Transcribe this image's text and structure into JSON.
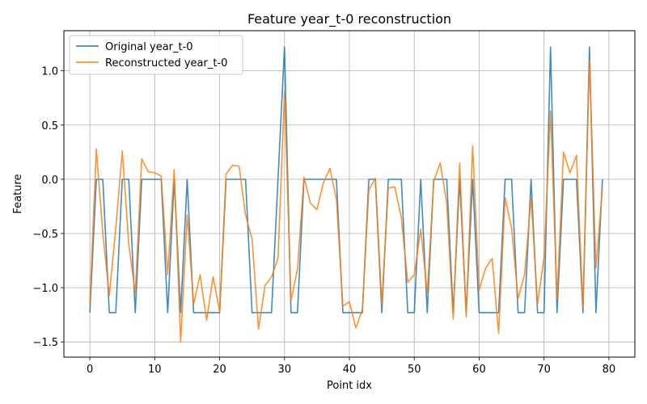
{
  "chart_data": {
    "type": "line",
    "title": "Feature year_t-0 reconstruction",
    "xlabel": "Point idx",
    "ylabel": "Feature",
    "xlim": [
      -4,
      84
    ],
    "ylim": [
      -1.64,
      1.37
    ],
    "xticks": [
      0,
      10,
      20,
      30,
      40,
      50,
      60,
      70,
      80
    ],
    "yticks": [
      -1.5,
      -1.0,
      -0.5,
      0.0,
      0.5,
      1.0
    ],
    "ytick_labels": [
      "−1.5",
      "−1.0",
      "−0.5",
      "0.0",
      "0.5",
      "1.0"
    ],
    "grid": true,
    "legend_position": "upper-left",
    "x": [
      0,
      1,
      2,
      3,
      4,
      5,
      6,
      7,
      8,
      9,
      10,
      11,
      12,
      13,
      14,
      15,
      16,
      17,
      18,
      19,
      20,
      21,
      22,
      23,
      24,
      25,
      26,
      27,
      28,
      29,
      30,
      31,
      32,
      33,
      34,
      35,
      36,
      37,
      38,
      39,
      40,
      41,
      42,
      43,
      44,
      45,
      46,
      47,
      48,
      49,
      50,
      51,
      52,
      53,
      54,
      55,
      56,
      57,
      58,
      59,
      60,
      61,
      62,
      63,
      64,
      65,
      66,
      67,
      68,
      69,
      70,
      71,
      72,
      73,
      74,
      75,
      76,
      77,
      78,
      79
    ],
    "series": [
      {
        "name": "Original year_t-0",
        "color": "#1f77b4",
        "values": [
          -1.23,
          0,
          0,
          -1.23,
          -1.23,
          0,
          0,
          -1.23,
          0,
          0,
          0,
          0,
          -1.23,
          0,
          -1.23,
          0,
          -1.23,
          -1.23,
          -1.23,
          -1.23,
          -1.23,
          0,
          0,
          0,
          0,
          -1.23,
          -1.23,
          -1.23,
          -1.23,
          0,
          1.22,
          -1.23,
          -1.23,
          0,
          0,
          0,
          0,
          0,
          0,
          -1.23,
          -1.23,
          -1.23,
          -1.23,
          0,
          0,
          -1.23,
          0,
          0,
          0,
          -1.23,
          -1.23,
          0,
          -1.23,
          0,
          0,
          0,
          -1.23,
          0,
          -1.23,
          0,
          -1.23,
          -1.23,
          -1.23,
          -1.23,
          0,
          0,
          -1.23,
          -1.23,
          0,
          -1.23,
          -1.23,
          1.22,
          -1.23,
          0,
          0,
          0,
          -1.23,
          1.22,
          -1.23,
          0
        ]
      },
      {
        "name": "Reconstructed year_t-0",
        "color": "#ff7f0e",
        "values": [
          -1.15,
          0.28,
          -0.5,
          -1.07,
          -0.45,
          0.26,
          -0.6,
          -1.05,
          0.19,
          0.07,
          0.06,
          0.03,
          -0.88,
          0.09,
          -1.5,
          -0.33,
          -1.15,
          -0.88,
          -1.3,
          -0.9,
          -1.22,
          0.05,
          0.13,
          0.12,
          -0.33,
          -0.55,
          -1.38,
          -0.98,
          -0.9,
          -0.73,
          0.8,
          -1.12,
          -0.83,
          0.02,
          -0.22,
          -0.28,
          -0.03,
          0.1,
          -0.18,
          -1.17,
          -1.13,
          -1.37,
          -1.2,
          -0.1,
          0.01,
          -1.15,
          -0.08,
          -0.07,
          -0.35,
          -0.95,
          -0.88,
          -0.46,
          -1.05,
          -0.02,
          0.15,
          -0.22,
          -1.29,
          0.15,
          -1.27,
          0.31,
          -1.02,
          -0.82,
          -0.73,
          -1.42,
          -0.17,
          -0.45,
          -1.1,
          -0.88,
          -0.17,
          -1.15,
          -0.72,
          0.63,
          -1.1,
          0.25,
          0.06,
          0.22,
          -1.18,
          1.1,
          -0.82,
          -0.08
        ]
      }
    ]
  }
}
